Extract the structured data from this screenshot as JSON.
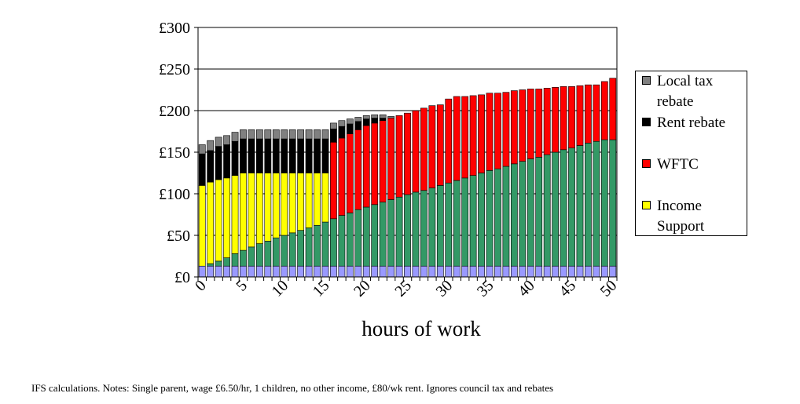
{
  "chart_data": {
    "type": "bar",
    "stacked": true,
    "xlabel": "hours of work",
    "ylabel": "",
    "ylim": [
      0,
      300
    ],
    "yticks": [
      0,
      50,
      100,
      150,
      200,
      250,
      300
    ],
    "ytick_labels": [
      "£0",
      "£50",
      "£100",
      "£150",
      "£200",
      "£250",
      "£300"
    ],
    "xticks": [
      0,
      5,
      10,
      15,
      20,
      25,
      30,
      35,
      40,
      45,
      50
    ],
    "x": [
      0,
      1,
      2,
      3,
      4,
      5,
      6,
      7,
      8,
      9,
      10,
      11,
      12,
      13,
      14,
      15,
      16,
      17,
      18,
      19,
      20,
      21,
      22,
      23,
      24,
      25,
      26,
      27,
      28,
      29,
      30,
      31,
      32,
      33,
      34,
      35,
      36,
      37,
      38,
      39,
      40,
      41,
      42,
      43,
      44,
      45,
      46,
      47,
      48,
      49,
      50
    ],
    "grid": "horizontal",
    "legend_position": "right",
    "series": [
      {
        "key": "base",
        "color": "#9999ff",
        "values": [
          13,
          13,
          13,
          13,
          13,
          13,
          13,
          13,
          13,
          13,
          13,
          13,
          13,
          13,
          13,
          13,
          13,
          13,
          13,
          13,
          13,
          13,
          13,
          13,
          13,
          13,
          13,
          13,
          13,
          13,
          13,
          13,
          13,
          13,
          13,
          13,
          13,
          13,
          13,
          13,
          13,
          13,
          13,
          13,
          13,
          13,
          13,
          13,
          13,
          13,
          13
        ]
      },
      {
        "key": "earnings",
        "color": "#339966",
        "values": [
          0,
          3,
          6,
          10,
          15,
          19,
          23,
          27,
          30,
          34,
          37,
          40,
          43,
          46,
          49,
          53,
          57,
          61,
          64,
          68,
          71,
          74,
          77,
          80,
          83,
          86,
          89,
          91,
          94,
          97,
          100,
          103,
          106,
          109,
          112,
          115,
          117,
          120,
          123,
          126,
          129,
          131,
          134,
          137,
          140,
          142,
          145,
          148,
          150,
          152,
          152
        ]
      },
      {
        "key": "income_support",
        "color": "#ffff00",
        "values": [
          97,
          98,
          98,
          96,
          94,
          93,
          89,
          85,
          82,
          78,
          75,
          72,
          69,
          66,
          63,
          59,
          0,
          0,
          0,
          0,
          0,
          0,
          0,
          0,
          0,
          0,
          0,
          0,
          0,
          0,
          0,
          0,
          0,
          0,
          0,
          0,
          0,
          0,
          0,
          0,
          0,
          0,
          0,
          0,
          0,
          0,
          0,
          0,
          0,
          0,
          0
        ]
      },
      {
        "name": "WFTC",
        "color": "#ff0000",
        "values": [
          0,
          0,
          0,
          0,
          0,
          0,
          0,
          0,
          0,
          0,
          0,
          0,
          0,
          0,
          0,
          0,
          92,
          93,
          95,
          96,
          98,
          98,
          98,
          98,
          98,
          98,
          98,
          99,
          99,
          97,
          101,
          101,
          98,
          96,
          94,
          93,
          91,
          89,
          88,
          86,
          84,
          82,
          80,
          78,
          76,
          74,
          72,
          70,
          68,
          70,
          74
        ]
      },
      {
        "name": "Rent rebate",
        "color": "#000000",
        "values": [
          38,
          38,
          40,
          40,
          41,
          41,
          41,
          41,
          41,
          41,
          41,
          41,
          41,
          41,
          41,
          41,
          16,
          14,
          12,
          10,
          8,
          6,
          3,
          0,
          0,
          0,
          0,
          0,
          0,
          0,
          0,
          0,
          0,
          0,
          0,
          0,
          0,
          0,
          0,
          0,
          0,
          0,
          0,
          0,
          0,
          0,
          0,
          0,
          0,
          0,
          0
        ]
      },
      {
        "name": "Local tax rebate",
        "color": "#808080",
        "values": [
          11,
          12,
          11,
          11,
          11,
          11,
          11,
          11,
          11,
          11,
          11,
          11,
          11,
          11,
          11,
          11,
          7,
          7,
          6,
          5,
          4,
          4,
          4,
          2,
          0,
          0,
          0,
          0,
          0,
          0,
          0,
          0,
          0,
          0,
          0,
          0,
          0,
          0,
          0,
          0,
          0,
          0,
          0,
          0,
          0,
          0,
          0,
          0,
          0,
          0,
          0
        ]
      }
    ]
  },
  "legend": [
    {
      "label": "Local tax\nrebate",
      "color": "#808080"
    },
    {
      "label": "Rent rebate",
      "color": "#000000"
    },
    {
      "label": "WFTC",
      "color": "#ff0000"
    },
    {
      "label": "Income\nSupport",
      "color": "#ffff00"
    }
  ],
  "note": "IFS calculations. Notes: Single parent, wage £6.50/hr, 1 children, no other income, £80/wk rent. Ignores council tax and rebates"
}
